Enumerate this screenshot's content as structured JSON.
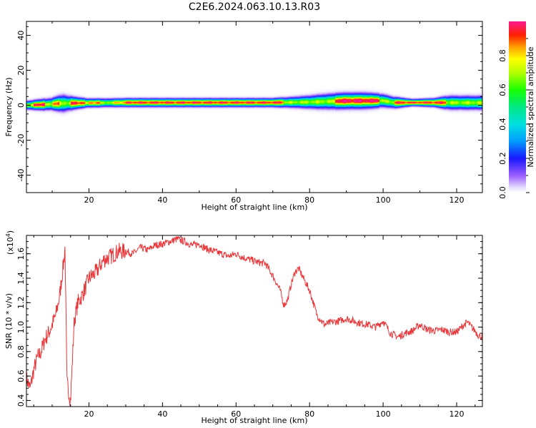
{
  "title": "C2E6.2024.063.10.13.R03",
  "spectrogram": {
    "type": "heatmap",
    "xlabel": "Height of straight line (km)",
    "ylabel": "Frequency (Hz)",
    "xlim": [
      3,
      127
    ],
    "ylim": [
      -50,
      48
    ],
    "xticks": [
      20,
      40,
      60,
      80,
      100,
      120
    ],
    "yticks": [
      -40,
      -20,
      0,
      20,
      40
    ],
    "colorbar": {
      "label": "Normalized spectral amplitude",
      "range": [
        0,
        1
      ],
      "ticks": [
        "0.0",
        "0.2",
        "0.4",
        "0.6",
        "0.8"
      ],
      "tick_values": [
        0,
        0.2,
        0.4,
        0.6,
        0.8
      ]
    },
    "band_center_hz": [
      [
        3,
        0.0
      ],
      [
        8,
        0.4
      ],
      [
        12,
        1.0
      ],
      [
        16,
        1.2
      ],
      [
        20,
        1.3
      ],
      [
        30,
        1.5
      ],
      [
        50,
        1.5
      ],
      [
        70,
        1.5
      ],
      [
        80,
        1.8
      ],
      [
        90,
        2.5
      ],
      [
        100,
        2.6
      ],
      [
        103,
        1.5
      ],
      [
        115,
        1.5
      ],
      [
        127,
        1.4
      ]
    ],
    "band_halfwidth_hz": [
      [
        3,
        2.5
      ],
      [
        10,
        3.5
      ],
      [
        13,
        5.0
      ],
      [
        16,
        3.5
      ],
      [
        20,
        2.5
      ],
      [
        40,
        2.5
      ],
      [
        70,
        2.5
      ],
      [
        78,
        3.5
      ],
      [
        85,
        4.5
      ],
      [
        95,
        4.5
      ],
      [
        102,
        3.5
      ],
      [
        108,
        2.0
      ],
      [
        114,
        2.5
      ],
      [
        118,
        4.0
      ],
      [
        127,
        4.0
      ]
    ],
    "peaks": [
      {
        "x1": 5,
        "x2": 8,
        "amp": 1.0
      },
      {
        "x1": 10,
        "x2": 12,
        "amp": 0.9
      },
      {
        "x1": 15,
        "x2": 19,
        "amp": 0.95
      },
      {
        "x1": 20,
        "x2": 23,
        "amp": 0.9
      },
      {
        "x1": 27,
        "x2": 30,
        "amp": 0.85
      },
      {
        "x1": 30,
        "x2": 73,
        "amp": 0.95
      },
      {
        "x1": 87,
        "x2": 99,
        "amp": 1.0
      },
      {
        "x1": 103,
        "x2": 117,
        "amp": 0.95
      }
    ]
  },
  "snr": {
    "type": "line",
    "xlabel": "Height of straight line (km)",
    "ylabel": "SNR (10 * v/v)",
    "exponent_label": "(x10",
    "exponent_sup": "4",
    "exponent_close": ")",
    "xlim": [
      3,
      127
    ],
    "ylim": [
      0.35,
      1.75
    ],
    "xticks": [
      20,
      40,
      60,
      80,
      100,
      120
    ],
    "yticks": [
      "0.4",
      "0.6",
      "0.8",
      "1.0",
      "1.2",
      "1.4",
      "1.6"
    ],
    "ytick_values": [
      0.4,
      0.6,
      0.8,
      1.0,
      1.2,
      1.4,
      1.6
    ],
    "color": "#e8373a",
    "x": [
      3,
      4,
      5,
      6,
      7,
      8,
      9,
      10,
      11,
      12,
      13,
      13.5,
      14,
      15,
      16,
      17,
      18,
      19,
      20,
      22,
      24,
      26,
      28,
      30,
      32,
      34,
      36,
      38,
      40,
      42,
      44,
      46,
      48,
      50,
      52,
      54,
      56,
      58,
      60,
      62,
      64,
      66,
      68,
      70,
      72,
      73,
      74,
      75,
      76,
      77,
      78,
      80,
      82,
      84,
      86,
      88,
      90,
      92,
      94,
      96,
      98,
      100,
      101,
      102,
      104,
      106,
      108,
      110,
      112,
      114,
      116,
      118,
      120,
      122,
      123,
      124,
      125,
      126,
      127
    ],
    "y": [
      0.58,
      0.5,
      0.65,
      0.75,
      0.8,
      0.9,
      0.95,
      1.02,
      1.1,
      1.25,
      1.5,
      1.65,
      0.55,
      0.4,
      1.05,
      1.2,
      1.25,
      1.32,
      1.4,
      1.45,
      1.55,
      1.58,
      1.62,
      1.62,
      1.6,
      1.65,
      1.63,
      1.67,
      1.68,
      1.7,
      1.72,
      1.7,
      1.67,
      1.68,
      1.64,
      1.62,
      1.6,
      1.58,
      1.6,
      1.57,
      1.55,
      1.53,
      1.52,
      1.42,
      1.3,
      1.18,
      1.22,
      1.35,
      1.45,
      1.48,
      1.42,
      1.3,
      1.1,
      1.02,
      1.04,
      1.05,
      1.07,
      1.05,
      1.03,
      1.02,
      1.0,
      1.05,
      1.0,
      0.95,
      0.92,
      0.95,
      0.97,
      1.02,
      0.98,
      0.97,
      0.98,
      0.96,
      0.96,
      1.02,
      1.04,
      1.0,
      0.97,
      0.93,
      0.92
    ]
  }
}
